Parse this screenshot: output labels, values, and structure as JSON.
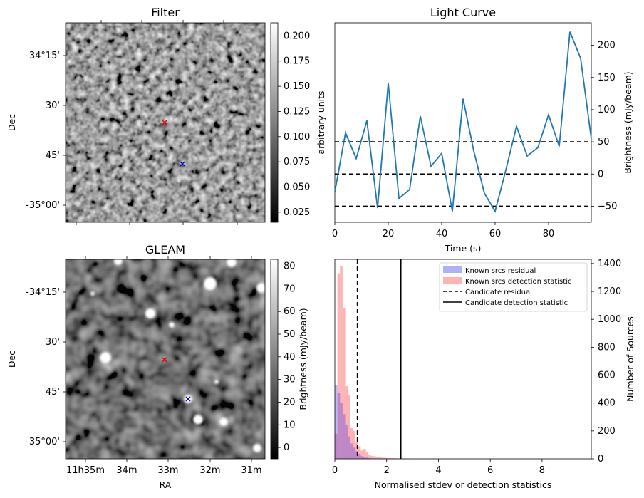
{
  "chart_data": [
    {
      "id": "filter",
      "type": "heatmap",
      "title": "Filter",
      "ylabel": "Dec",
      "yticks": [
        "-34°15'",
        "30'",
        "45'",
        "-35°00'"
      ],
      "colorbar": {
        "label": "arbitrary units",
        "ticks": [
          0.025,
          0.05,
          0.075,
          0.1,
          0.125,
          0.15,
          0.175,
          0.2
        ],
        "range": [
          0.015,
          0.213
        ]
      },
      "markers": [
        {
          "color": "#e00000",
          "symbol": "x"
        },
        {
          "color": "#0000e0",
          "symbol": "x"
        }
      ]
    },
    {
      "id": "lightcurve",
      "type": "line",
      "title": "Light Curve",
      "xlabel": "Time (s)",
      "ylabel": "Brightness (mJy/beam)",
      "xlim": [
        0,
        96
      ],
      "ylim": [
        -75,
        235
      ],
      "xticks": [
        0,
        20,
        40,
        60,
        80
      ],
      "yticks": [
        -50,
        0,
        50,
        100,
        150,
        200
      ],
      "series": [
        {
          "color": "#1f77b4",
          "x": [
            0,
            4,
            8,
            12,
            16,
            20,
            24,
            28,
            32,
            36,
            40,
            44,
            48,
            52,
            56,
            60,
            64,
            68,
            72,
            76,
            80,
            84,
            88,
            92,
            96
          ],
          "y": [
            -28,
            64,
            24,
            83,
            -53,
            141,
            -38,
            -24,
            90,
            12,
            32,
            -58,
            117,
            36,
            -30,
            -58,
            6,
            74,
            28,
            41,
            92,
            43,
            221,
            180,
            55
          ]
        }
      ],
      "hlines": [
        50,
        0,
        -50
      ]
    },
    {
      "id": "gleam",
      "type": "heatmap",
      "title": "GLEAM",
      "xlabel": "RA",
      "ylabel": "Dec",
      "xticks": [
        "11h35m",
        "34m",
        "33m",
        "32m",
        "31m"
      ],
      "yticks": [
        "-34°15'",
        "30'",
        "45'",
        "-35°00'"
      ],
      "colorbar": {
        "label": "Brightness (mJy/beam)",
        "ticks": [
          0,
          10,
          20,
          30,
          40,
          50,
          60,
          70,
          80
        ],
        "range": [
          -5,
          83
        ]
      },
      "markers": [
        {
          "color": "#e00000",
          "symbol": "x"
        },
        {
          "color": "#0000e0",
          "symbol": "x"
        }
      ]
    },
    {
      "id": "histogram",
      "type": "bar",
      "xlabel": "Normalised stdev or detection statistics",
      "ylabel": "Number of Sources",
      "xlim": [
        0,
        9.9
      ],
      "ylim": [
        0,
        1430
      ],
      "xticks": [
        0,
        2,
        4,
        6,
        8
      ],
      "yticks": [
        0,
        200,
        400,
        600,
        800,
        1000,
        1200,
        1400
      ],
      "bin_width": 0.1,
      "series": [
        {
          "name": "Known srcs residual",
          "color": "#b0b0f8",
          "values": [
            530,
            470,
            400,
            320,
            240,
            160,
            110,
            80,
            55,
            35,
            20,
            12,
            8,
            5,
            3,
            2,
            1
          ]
        },
        {
          "name": "Known srcs detection statistic",
          "color": "#ffb3b3",
          "values": [
            180,
            1330,
            1380,
            1080,
            520,
            460,
            220,
            200,
            120,
            90,
            60,
            70,
            45,
            25,
            20,
            18,
            12,
            10,
            8,
            7,
            6,
            5,
            5,
            4,
            3,
            3,
            2,
            2,
            2,
            1,
            2,
            1,
            1,
            1
          ]
        }
      ],
      "vlines": [
        {
          "name": "Candidate residual",
          "x": 0.87,
          "style": "dashed"
        },
        {
          "name": "Candidate detection statistic",
          "x": 2.55,
          "style": "solid"
        }
      ],
      "legend": "top-right"
    }
  ]
}
